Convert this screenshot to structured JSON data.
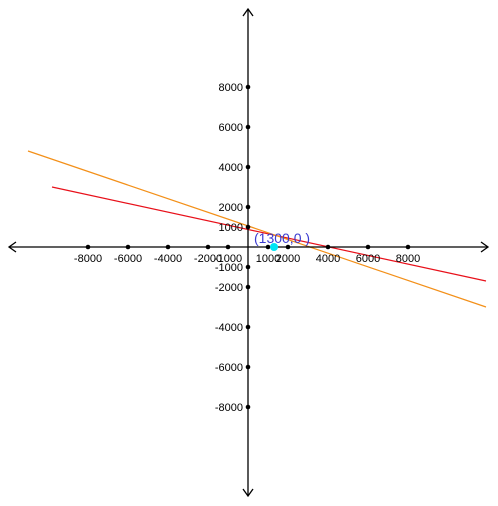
{
  "chart_data": {
    "type": "line",
    "xlim": [
      -9700,
      9700
    ],
    "ylim": [
      -9700,
      9700
    ],
    "x_ticks": [
      -8000,
      -6000,
      -4000,
      -2000,
      -1000,
      1000,
      2000,
      4000,
      6000,
      8000
    ],
    "y_ticks": [
      8000,
      6000,
      4000,
      2000,
      1000,
      -1000,
      -2000,
      -4000,
      -6000,
      -8000
    ],
    "x_tick_labels": [
      "-8000",
      "-6000",
      "-4000",
      "-2000",
      "-1000",
      "1000",
      "2000",
      "4000",
      "6000",
      "8000"
    ],
    "y_tick_labels": [
      "8000",
      "6000",
      "4000",
      "2000",
      "1000",
      "-1000",
      "-2000",
      "-4000",
      "-6000",
      "-8000"
    ],
    "grid": false,
    "series": [
      {
        "color": "#e8101a",
        "points": [
          {
            "x": -9800,
            "y": 3000
          },
          {
            "x": 11900,
            "y": -1700
          }
        ]
      },
      {
        "color": "#f39019",
        "points": [
          {
            "x": -11000,
            "y": 4800
          },
          {
            "x": 11900,
            "y": -3000
          }
        ]
      }
    ],
    "highlight": {
      "x": 1300,
      "y": 0,
      "label": "(1300,0 )",
      "color": "#00e5f5",
      "label_color": "#3b3bd0"
    },
    "axis_color": "#000000"
  }
}
